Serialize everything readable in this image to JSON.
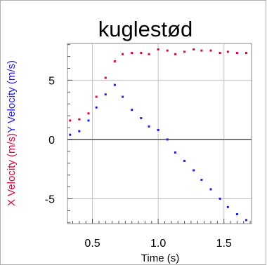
{
  "chart_data": {
    "type": "scatter",
    "title": "kuglestød",
    "xlabel": "Time (s)",
    "ylabel_parts": [
      {
        "text": "X Velocity (m/s)",
        "color": "#e8003c"
      },
      {
        "text": "Y Velocity (m/s)",
        "color": "#1a1aff"
      }
    ],
    "xlim": [
      0.31,
      1.71
    ],
    "ylim": [
      -7.1,
      8.1
    ],
    "grid": true,
    "x_ticks": [
      {
        "v": 0.5,
        "label": "0.5"
      },
      {
        "v": 1.0,
        "label": "1.0"
      },
      {
        "v": 1.5,
        "label": "1.5"
      }
    ],
    "y_ticks": [
      {
        "v": 5,
        "label": "5"
      },
      {
        "v": 0,
        "label": "0"
      },
      {
        "v": -5,
        "label": "-5"
      }
    ],
    "series": [
      {
        "color": "#e8003c",
        "x": [
          0.33,
          0.4,
          0.47,
          0.53,
          0.6,
          0.67,
          0.73,
          0.8,
          0.87,
          0.93,
          1.0,
          1.07,
          1.13,
          1.2,
          1.27,
          1.33,
          1.4,
          1.47,
          1.53,
          1.6,
          1.67
        ],
        "y": [
          1.6,
          1.7,
          2.2,
          3.6,
          5.2,
          6.6,
          7.2,
          7.3,
          7.3,
          7.2,
          7.6,
          7.5,
          7.2,
          7.4,
          7.6,
          7.5,
          7.5,
          7.3,
          7.4,
          7.3,
          7.3
        ]
      },
      {
        "color": "#1a1aff",
        "x": [
          0.33,
          0.4,
          0.47,
          0.53,
          0.6,
          0.67,
          0.73,
          0.8,
          0.87,
          0.93,
          1.0,
          1.07,
          1.13,
          1.2,
          1.27,
          1.33,
          1.4,
          1.47,
          1.53,
          1.6,
          1.67
        ],
        "y": [
          0.4,
          0.7,
          1.6,
          2.7,
          3.8,
          4.6,
          3.6,
          2.5,
          1.8,
          1.1,
          0.8,
          0.0,
          -1.1,
          -1.8,
          -2.6,
          -3.4,
          -4.2,
          -5.0,
          -5.7,
          -6.3,
          -6.8
        ]
      }
    ]
  }
}
